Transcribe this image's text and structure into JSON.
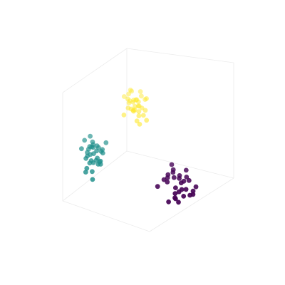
{
  "chart_data": {
    "type": "scatter",
    "projection": "3d",
    "title": "",
    "xlabel": "",
    "ylabel": "",
    "zlabel": "",
    "axes_visible": false,
    "grid": false,
    "legend": "none",
    "colors": {
      "cluster_0": "#440154",
      "cluster_1": "#21908c",
      "cluster_2": "#fde725",
      "pane_edge": "#ececec"
    },
    "series": [
      {
        "cluster": 0,
        "points": [
          [
            8.25,
            -2.6
          ],
          [
            6.53,
            -1.77
          ],
          [
            8.5,
            -2.2
          ],
          [
            7.4,
            -2.11
          ],
          [
            6.56,
            -1.52
          ],
          [
            8.82,
            -1.68
          ],
          [
            7.79,
            -1.56
          ],
          [
            7.4,
            -2.75
          ],
          [
            9.55,
            -2.05
          ],
          [
            7.82,
            -1.39
          ],
          [
            8.56,
            -1.48
          ],
          [
            7.16,
            -1.05
          ],
          [
            5.5,
            -2.03
          ],
          [
            7.35,
            -2.44
          ],
          [
            8.52,
            -1.08
          ],
          [
            6.66,
            -2.93
          ],
          [
            7.76,
            -2.34
          ],
          [
            6.6,
            -1.34
          ],
          [
            9.25,
            -2.3
          ],
          [
            7.99,
            -1.82
          ],
          [
            8.27,
            -1.72
          ],
          [
            7.13,
            -1.21
          ],
          [
            8.92,
            -2.54
          ],
          [
            6.17,
            -1.63
          ],
          [
            7.71,
            -2.95
          ],
          [
            8.05,
            -2.21
          ],
          [
            7.33,
            -2.69
          ],
          [
            6.99,
            -0.75
          ],
          [
            7.24,
            -1.51
          ],
          [
            9.24,
            -2.49
          ]
        ]
      },
      {
        "cluster": 1,
        "points": [
          [
            -1.97,
            -0.97
          ],
          [
            -1.45,
            0.29
          ],
          [
            -0.62,
            -0.59
          ],
          [
            -1.78,
            0.15
          ],
          [
            -0.86,
            -0.37
          ],
          [
            -2.2,
            0.67
          ],
          [
            -1.24,
            -0.11
          ],
          [
            -0.44,
            0.02
          ],
          [
            -1.61,
            0.91
          ],
          [
            -1.5,
            -0.52
          ],
          [
            -0.89,
            0.35
          ],
          [
            -0.51,
            -0.73
          ],
          [
            -2.53,
            0.18
          ],
          [
            -2.06,
            -0.39
          ],
          [
            -1.3,
            0.25
          ],
          [
            -0.93,
            0.05
          ],
          [
            -1.36,
            0.58
          ],
          [
            -0.28,
            -0.08
          ],
          [
            -1.28,
            -0.64
          ],
          [
            -2.08,
            -1.19
          ],
          [
            0.06,
            0.53
          ],
          [
            -0.98,
            -0.5
          ],
          [
            -1.66,
            0.31
          ],
          [
            -1.29,
            0.42
          ],
          [
            -1.36,
            -1.62
          ],
          [
            -0.77,
            -0.73
          ],
          [
            -1.66,
            -0.66
          ],
          [
            -1.6,
            -0.16
          ],
          [
            -0.73,
            0.24
          ],
          [
            -0.53,
            -0.55
          ],
          [
            -1.91,
            -0.25
          ],
          [
            -0.32,
            0.13
          ],
          [
            -1.92,
            -0.04
          ],
          [
            -1.4,
            -1.16
          ]
        ]
      },
      {
        "cluster": 2,
        "points": [
          [
            2.4,
            2.56
          ],
          [
            3.53,
            2.1
          ],
          [
            4.18,
            3.06
          ],
          [
            2.48,
            2.86
          ],
          [
            3.79,
            3.26
          ],
          [
            3.09,
            2.45
          ],
          [
            4.34,
            1.84
          ],
          [
            2.71,
            2.5
          ],
          [
            3.48,
            2.92
          ],
          [
            3.61,
            1.61
          ],
          [
            1.98,
            3.23
          ],
          [
            3.22,
            3.04
          ],
          [
            2.93,
            2.42
          ],
          [
            4.21,
            2.42
          ],
          [
            3.32,
            1.8
          ],
          [
            2.92,
            2.9
          ],
          [
            2.45,
            3.38
          ],
          [
            3.47,
            2.67
          ],
          [
            3.11,
            2.65
          ],
          [
            2.64,
            3.61
          ],
          [
            3.84,
            2.56
          ],
          [
            4.01,
            2.13
          ],
          [
            2.97,
            2.37
          ],
          [
            4.33,
            3.11
          ],
          [
            3.69,
            3.52
          ],
          [
            3.56,
            2.67
          ],
          [
            1.95,
            2.15
          ],
          [
            2.35,
            3.09
          ],
          [
            3.3,
            3.04
          ],
          [
            3.52,
            2.35
          ],
          [
            2.76,
            3.54
          ],
          [
            2.57,
            2.98
          ],
          [
            2.98,
            3.02
          ]
        ]
      }
    ]
  }
}
